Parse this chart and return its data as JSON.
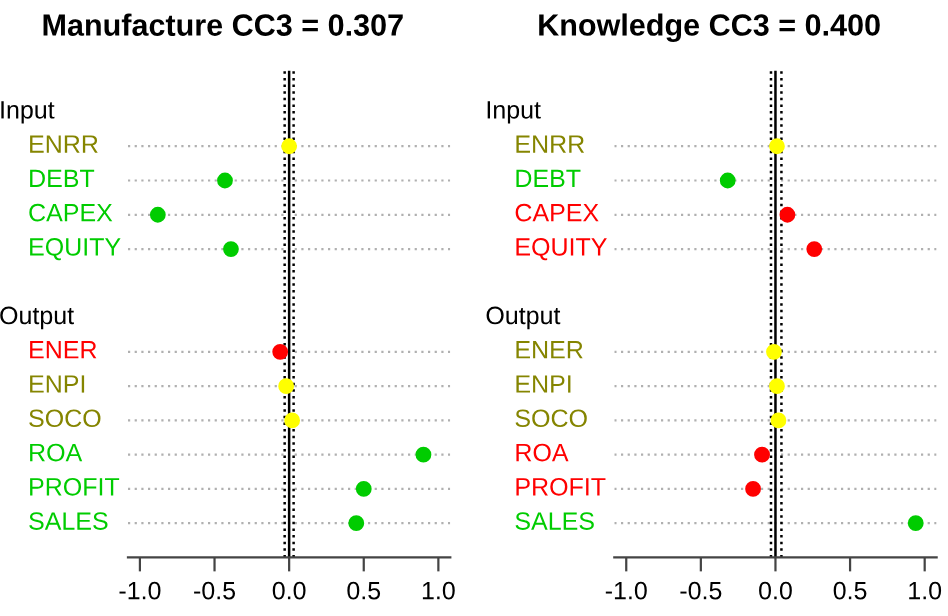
{
  "chart_data": [
    {
      "type": "scatter",
      "title": "Manufacture CC3 = 0.307",
      "orientation": "horizontal",
      "categories": [
        "Input",
        "ENRR",
        "DEBT",
        "CAPEX",
        "EQUITY",
        null,
        "Output",
        "ENER",
        "ENPI",
        "SOCO",
        "ROA",
        "PROFIT",
        "SALES"
      ],
      "values": [
        null,
        0.0,
        -0.43,
        -0.88,
        -0.39,
        null,
        null,
        -0.06,
        -0.02,
        0.02,
        0.9,
        0.5,
        0.45
      ],
      "colors": [
        null,
        "#ffff00",
        "#00cc00",
        "#00cc00",
        "#00cc00",
        null,
        null,
        "#ff0000",
        "#ffff00",
        "#ffff00",
        "#00cc00",
        "#00cc00",
        "#00cc00"
      ],
      "xlim": [
        -1.08,
        1.08
      ],
      "xticks": [
        {
          "value": -1,
          "label": "-1.0"
        },
        {
          "value": -0.5,
          "label": "-0.5"
        },
        {
          "value": 0,
          "label": "0.0"
        },
        {
          "value": 0.5,
          "label": "0.5"
        },
        {
          "value": 1,
          "label": "1.0"
        }
      ],
      "ref_lines": [
        {
          "axis": "x",
          "value": 0,
          "color": "#000000",
          "line_style": "solid"
        },
        {
          "axis": "x",
          "value": -0.03,
          "color": "#000000",
          "line_style": "dotted"
        },
        {
          "axis": "x",
          "value": 0.03,
          "color": "#000000",
          "line_style": "dotted"
        }
      ],
      "grid": "y",
      "marker": "circle",
      "tick_labels": "x"
    },
    {
      "type": "scatter",
      "title": "Knowledge CC3 = 0.400",
      "orientation": "horizontal",
      "categories": [
        "Input",
        "ENRR",
        "DEBT",
        "CAPEX",
        "EQUITY",
        null,
        "Output",
        "ENER",
        "ENPI",
        "SOCO",
        "ROA",
        "PROFIT",
        "SALES"
      ],
      "values": [
        null,
        0.01,
        -0.32,
        0.08,
        0.26,
        null,
        null,
        -0.01,
        0.01,
        0.02,
        -0.09,
        -0.15,
        0.94
      ],
      "colors": [
        null,
        "#ffff00",
        "#00cc00",
        "#ff0000",
        "#ff0000",
        null,
        null,
        "#ffff00",
        "#ffff00",
        "#ffff00",
        "#ff0000",
        "#ff0000",
        "#00cc00"
      ],
      "xlim": [
        -1.08,
        1.08
      ],
      "xticks": [
        {
          "value": -1,
          "label": "-1.0"
        },
        {
          "value": -0.5,
          "label": "-0.5"
        },
        {
          "value": 0,
          "label": "0.0"
        },
        {
          "value": 0.5,
          "label": "0.5"
        },
        {
          "value": 1,
          "label": "1.0"
        }
      ],
      "ref_lines": [
        {
          "axis": "x",
          "value": 0,
          "color": "#000000",
          "line_style": "solid"
        },
        {
          "axis": "x",
          "value": -0.03,
          "color": "#000000",
          "line_style": "dotted"
        },
        {
          "axis": "x",
          "value": 0.04,
          "color": "#000000",
          "line_style": "dotted"
        }
      ],
      "grid": "y",
      "marker": "circle",
      "tick_labels": "x"
    }
  ]
}
